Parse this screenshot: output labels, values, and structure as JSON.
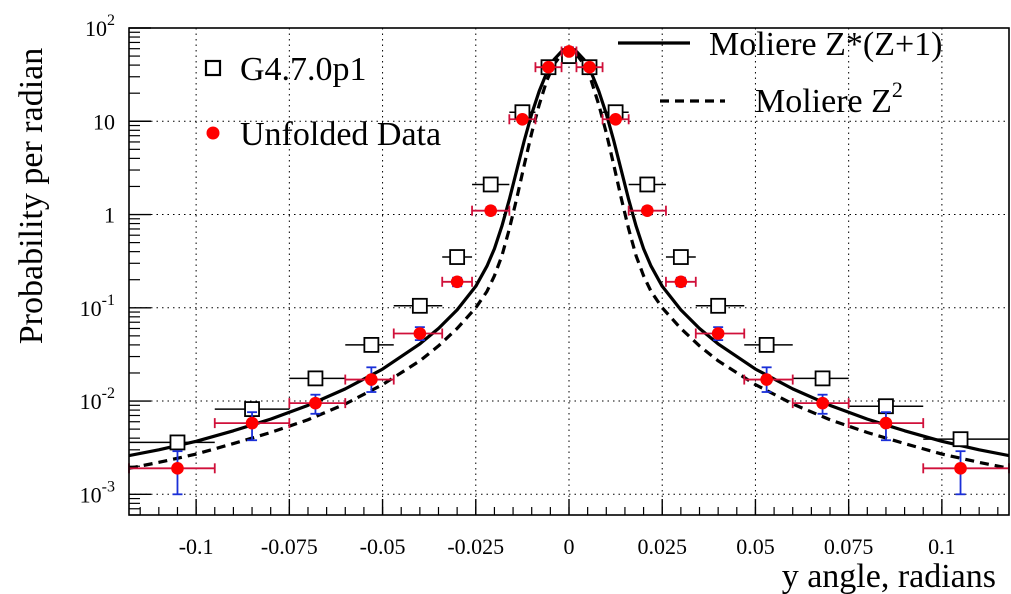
{
  "chart_data": {
    "type": "scatter",
    "xlabel": "y angle, radians",
    "ylabel": "Probability per radian",
    "x_range": [
      -0.118,
      0.118
    ],
    "y_range": [
      0.0006,
      100
    ],
    "y_scale": "log",
    "grid": true,
    "x_ticks": [
      {
        "value": -0.1,
        "label": "-0.1"
      },
      {
        "value": -0.075,
        "label": "-0.075"
      },
      {
        "value": -0.05,
        "label": "-0.05"
      },
      {
        "value": -0.025,
        "label": "-0.025"
      },
      {
        "value": 0,
        "label": "0"
      },
      {
        "value": 0.025,
        "label": "0.025"
      },
      {
        "value": 0.05,
        "label": "0.05"
      },
      {
        "value": 0.075,
        "label": "0.075"
      },
      {
        "value": 0.1,
        "label": "0.1"
      }
    ],
    "y_ticks": [
      {
        "value": 100,
        "base": "10",
        "exp": "2"
      },
      {
        "value": 10,
        "base": "10",
        "exp": ""
      },
      {
        "value": 1,
        "base": "1",
        "exp": ""
      },
      {
        "value": 0.1,
        "base": "10",
        "exp": "-1"
      },
      {
        "value": 0.01,
        "base": "10",
        "exp": "-2"
      },
      {
        "value": 0.001,
        "base": "10",
        "exp": "-3"
      }
    ],
    "legend_left": [
      {
        "label": "G4.7.0p1",
        "marker": "open-square"
      },
      {
        "label": "Unfolded Data",
        "marker": "red-circle"
      }
    ],
    "legend_right": [
      {
        "label": "Moliere Z*(Z+1)",
        "line": "solid"
      },
      {
        "label": "Moliere Z",
        "sup": "2",
        "line": "dashed"
      }
    ],
    "series": [
      {
        "name": "G4.7.0p1",
        "marker": "open-square",
        "points": [
          {
            "x": -0.105,
            "xlo": -0.118,
            "xhi": -0.095,
            "y": 0.0036
          },
          {
            "x": -0.085,
            "xlo": -0.095,
            "xhi": -0.075,
            "y": 0.0082
          },
          {
            "x": -0.068,
            "xlo": -0.075,
            "xhi": -0.06,
            "y": 0.0175
          },
          {
            "x": -0.053,
            "xlo": -0.06,
            "xhi": -0.047,
            "y": 0.04
          },
          {
            "x": -0.04,
            "xlo": -0.047,
            "xhi": -0.034,
            "y": 0.105
          },
          {
            "x": -0.03,
            "xlo": -0.034,
            "xhi": -0.026,
            "y": 0.35
          },
          {
            "x": -0.021,
            "xlo": -0.026,
            "xhi": -0.016,
            "y": 2.1
          },
          {
            "x": -0.0125,
            "xlo": -0.016,
            "xhi": -0.009,
            "y": 12.5
          },
          {
            "x": -0.0055,
            "xlo": -0.009,
            "xhi": -0.002,
            "y": 38
          },
          {
            "x": 0,
            "xlo": -0.002,
            "xhi": 0.002,
            "y": 50
          },
          {
            "x": 0.0055,
            "xlo": 0.002,
            "xhi": 0.009,
            "y": 38
          },
          {
            "x": 0.0125,
            "xlo": 0.009,
            "xhi": 0.016,
            "y": 12.5
          },
          {
            "x": 0.021,
            "xlo": 0.016,
            "xhi": 0.026,
            "y": 2.1
          },
          {
            "x": 0.03,
            "xlo": 0.026,
            "xhi": 0.034,
            "y": 0.35
          },
          {
            "x": 0.04,
            "xlo": 0.034,
            "xhi": 0.047,
            "y": 0.105
          },
          {
            "x": 0.053,
            "xlo": 0.047,
            "xhi": 0.06,
            "y": 0.04
          },
          {
            "x": 0.068,
            "xlo": 0.06,
            "xhi": 0.075,
            "y": 0.0175
          },
          {
            "x": 0.085,
            "xlo": 0.075,
            "xhi": 0.095,
            "y": 0.0088
          },
          {
            "x": 0.105,
            "xlo": 0.095,
            "xhi": 0.118,
            "y": 0.0039
          }
        ]
      },
      {
        "name": "Unfolded Data",
        "marker": "red-circle",
        "points": [
          {
            "x": -0.105,
            "xlo": -0.118,
            "xhi": -0.095,
            "y": 0.0019,
            "ylo": 0.001,
            "yhi": 0.0029
          },
          {
            "x": -0.085,
            "xlo": -0.095,
            "xhi": -0.075,
            "y": 0.0058,
            "ylo": 0.0038,
            "yhi": 0.0076
          },
          {
            "x": -0.068,
            "xlo": -0.075,
            "xhi": -0.06,
            "y": 0.0095,
            "ylo": 0.0073,
            "yhi": 0.0117
          },
          {
            "x": -0.053,
            "xlo": -0.06,
            "xhi": -0.047,
            "y": 0.017,
            "ylo": 0.0125,
            "yhi": 0.023
          },
          {
            "x": -0.04,
            "xlo": -0.047,
            "xhi": -0.034,
            "y": 0.053,
            "ylo": 0.045,
            "yhi": 0.062
          },
          {
            "x": -0.03,
            "xlo": -0.034,
            "xhi": -0.026,
            "y": 0.19,
            "ylo": 0.17,
            "yhi": 0.21
          },
          {
            "x": -0.021,
            "xlo": -0.026,
            "xhi": -0.016,
            "y": 1.1,
            "ylo": 1.0,
            "yhi": 1.2
          },
          {
            "x": -0.0125,
            "xlo": -0.016,
            "xhi": -0.009,
            "y": 10.5,
            "ylo": 9.8,
            "yhi": 11.2
          },
          {
            "x": -0.0055,
            "xlo": -0.009,
            "xhi": -0.002,
            "y": 38,
            "ylo": 35,
            "yhi": 41
          },
          {
            "x": 0,
            "xlo": -0.002,
            "xhi": 0.002,
            "y": 56,
            "ylo": 52,
            "yhi": 62
          },
          {
            "x": 0.0055,
            "xlo": 0.002,
            "xhi": 0.009,
            "y": 38,
            "ylo": 35,
            "yhi": 41
          },
          {
            "x": 0.0125,
            "xlo": 0.009,
            "xhi": 0.016,
            "y": 10.5,
            "ylo": 9.8,
            "yhi": 11.2
          },
          {
            "x": 0.021,
            "xlo": 0.016,
            "xhi": 0.026,
            "y": 1.1,
            "ylo": 1.0,
            "yhi": 1.2
          },
          {
            "x": 0.03,
            "xlo": 0.026,
            "xhi": 0.034,
            "y": 0.19,
            "ylo": 0.17,
            "yhi": 0.21
          },
          {
            "x": 0.04,
            "xlo": 0.034,
            "xhi": 0.047,
            "y": 0.053,
            "ylo": 0.045,
            "yhi": 0.062
          },
          {
            "x": 0.053,
            "xlo": 0.047,
            "xhi": 0.06,
            "y": 0.017,
            "ylo": 0.0125,
            "yhi": 0.023
          },
          {
            "x": 0.068,
            "xlo": 0.06,
            "xhi": 0.075,
            "y": 0.0095,
            "ylo": 0.0073,
            "yhi": 0.0117
          },
          {
            "x": 0.085,
            "xlo": 0.075,
            "xhi": 0.095,
            "y": 0.0058,
            "ylo": 0.0038,
            "yhi": 0.0076
          },
          {
            "x": 0.105,
            "xlo": 0.095,
            "xhi": 0.118,
            "y": 0.0019,
            "ylo": 0.001,
            "yhi": 0.0029
          }
        ]
      },
      {
        "name": "Moliere Z*(Z+1)",
        "line": "solid",
        "points": [
          {
            "x": 0,
            "y": 60
          },
          {
            "x": 0.002,
            "y": 56
          },
          {
            "x": 0.004,
            "y": 46
          },
          {
            "x": 0.006,
            "y": 33
          },
          {
            "x": 0.008,
            "y": 21
          },
          {
            "x": 0.01,
            "y": 12
          },
          {
            "x": 0.012,
            "y": 6.2
          },
          {
            "x": 0.014,
            "y": 3.0
          },
          {
            "x": 0.016,
            "y": 1.45
          },
          {
            "x": 0.018,
            "y": 0.75
          },
          {
            "x": 0.02,
            "y": 0.43
          },
          {
            "x": 0.022,
            "y": 0.28
          },
          {
            "x": 0.025,
            "y": 0.17
          },
          {
            "x": 0.03,
            "y": 0.095
          },
          {
            "x": 0.035,
            "y": 0.06
          },
          {
            "x": 0.04,
            "y": 0.041
          },
          {
            "x": 0.05,
            "y": 0.022
          },
          {
            "x": 0.06,
            "y": 0.0135
          },
          {
            "x": 0.07,
            "y": 0.009
          },
          {
            "x": 0.08,
            "y": 0.0064
          },
          {
            "x": 0.09,
            "y": 0.0048
          },
          {
            "x": 0.1,
            "y": 0.0037
          },
          {
            "x": 0.11,
            "y": 0.003
          },
          {
            "x": 0.118,
            "y": 0.0026
          }
        ]
      },
      {
        "name": "Moliere Z",
        "line": "dashed",
        "points": [
          {
            "x": 0,
            "y": 56
          },
          {
            "x": 0.002,
            "y": 52
          },
          {
            "x": 0.004,
            "y": 41
          },
          {
            "x": 0.006,
            "y": 27
          },
          {
            "x": 0.008,
            "y": 15
          },
          {
            "x": 0.01,
            "y": 7.5
          },
          {
            "x": 0.012,
            "y": 3.4
          },
          {
            "x": 0.014,
            "y": 1.5
          },
          {
            "x": 0.016,
            "y": 0.7
          },
          {
            "x": 0.018,
            "y": 0.36
          },
          {
            "x": 0.02,
            "y": 0.22
          },
          {
            "x": 0.022,
            "y": 0.15
          },
          {
            "x": 0.025,
            "y": 0.1
          },
          {
            "x": 0.03,
            "y": 0.06
          },
          {
            "x": 0.035,
            "y": 0.039
          },
          {
            "x": 0.04,
            "y": 0.027
          },
          {
            "x": 0.05,
            "y": 0.015
          },
          {
            "x": 0.06,
            "y": 0.0093
          },
          {
            "x": 0.07,
            "y": 0.0063
          },
          {
            "x": 0.08,
            "y": 0.0046
          },
          {
            "x": 0.09,
            "y": 0.0035
          },
          {
            "x": 0.1,
            "y": 0.0027
          },
          {
            "x": 0.11,
            "y": 0.0022
          },
          {
            "x": 0.118,
            "y": 0.0019
          }
        ]
      }
    ]
  }
}
